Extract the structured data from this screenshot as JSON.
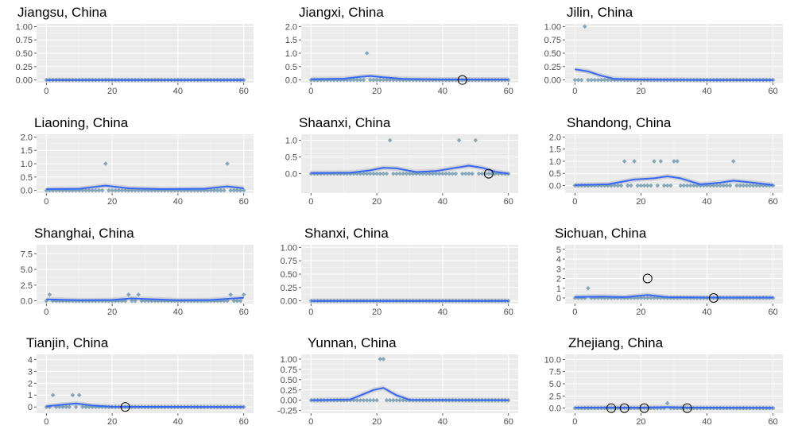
{
  "colors": {
    "panel_bg": "#ebebeb",
    "grid_major": "#ffffff",
    "grid_minor": "#f5f5f5",
    "trend_line": "#3366ff",
    "ribbon": "#bebebe",
    "points": "#5f8ea5",
    "outlier_ring": "#000000",
    "tick_label": "#4d4d4d"
  },
  "chart_data": [
    {
      "type": "scatter",
      "title": "Jiangsu, China",
      "xlim": [
        0,
        60
      ],
      "ylim": [
        0,
        1
      ],
      "xticks": [
        0,
        20,
        40,
        60
      ],
      "yticks": [
        "0.00",
        "0.25",
        "0.50",
        "0.75",
        "1.00"
      ],
      "points": [],
      "outliers": [],
      "trend": [
        [
          0,
          0
        ],
        [
          60,
          0
        ]
      ]
    },
    {
      "type": "scatter",
      "title": "Jiangxi, China",
      "xlim": [
        0,
        60
      ],
      "ylim": [
        0,
        2
      ],
      "xticks": [
        0,
        20,
        40,
        60
      ],
      "yticks": [
        "0.0",
        "0.5",
        "1.0",
        "1.5",
        "2.0"
      ],
      "points": [
        [
          17,
          1
        ]
      ],
      "outliers": [
        [
          46,
          0
        ]
      ],
      "trend": [
        [
          0,
          0.03
        ],
        [
          10,
          0.05
        ],
        [
          15,
          0.12
        ],
        [
          18,
          0.15
        ],
        [
          22,
          0.1
        ],
        [
          28,
          0.04
        ],
        [
          40,
          0.02
        ],
        [
          60,
          0.02
        ]
      ]
    },
    {
      "type": "scatter",
      "title": "Jilin, China",
      "xlim": [
        0,
        60
      ],
      "ylim": [
        0,
        1
      ],
      "xticks": [
        0,
        20,
        40,
        60
      ],
      "yticks": [
        "0.00",
        "0.25",
        "0.50",
        "0.75",
        "1.00"
      ],
      "points": [
        [
          3,
          1
        ]
      ],
      "outliers": [],
      "trend": [
        [
          0,
          0.2
        ],
        [
          4,
          0.16
        ],
        [
          8,
          0.08
        ],
        [
          12,
          0.02
        ],
        [
          20,
          0.01
        ],
        [
          40,
          0.0
        ],
        [
          60,
          0.0
        ]
      ]
    },
    {
      "type": "scatter",
      "title": "Liaoning, China",
      "xlim": [
        0,
        60
      ],
      "ylim": [
        0,
        2
      ],
      "xticks": [
        0,
        20,
        40,
        60
      ],
      "yticks": [
        "0.0",
        "0.5",
        "1.0",
        "1.5",
        "2.0"
      ],
      "points": [
        [
          18,
          1
        ],
        [
          55,
          1
        ]
      ],
      "outliers": [],
      "trend": [
        [
          0,
          0.05
        ],
        [
          10,
          0.06
        ],
        [
          18,
          0.18
        ],
        [
          25,
          0.08
        ],
        [
          35,
          0.05
        ],
        [
          48,
          0.06
        ],
        [
          55,
          0.15
        ],
        [
          60,
          0.08
        ]
      ]
    },
    {
      "type": "scatter",
      "title": "Shaanxi, China",
      "xlim": [
        0,
        60
      ],
      "ylim": [
        -0.5,
        1.1
      ],
      "xticks": [
        0,
        20,
        40,
        60
      ],
      "yticks": [
        "0.0",
        "0.5",
        "1.0"
      ],
      "points": [
        [
          24,
          1
        ],
        [
          45,
          1
        ],
        [
          50,
          1
        ]
      ],
      "outliers": [
        [
          54,
          0
        ]
      ],
      "trend": [
        [
          0,
          0.02
        ],
        [
          12,
          0.03
        ],
        [
          18,
          0.1
        ],
        [
          22,
          0.18
        ],
        [
          26,
          0.16
        ],
        [
          32,
          0.05
        ],
        [
          38,
          0.08
        ],
        [
          44,
          0.18
        ],
        [
          48,
          0.24
        ],
        [
          52,
          0.18
        ],
        [
          56,
          0.06
        ],
        [
          60,
          0.0
        ]
      ]
    },
    {
      "type": "scatter",
      "title": "Shandong, China",
      "xlim": [
        0,
        60
      ],
      "ylim": [
        -0.2,
        2
      ],
      "xticks": [
        0,
        20,
        40,
        60
      ],
      "yticks": [
        "0.0",
        "0.5",
        "1.0",
        "1.5",
        "2.0"
      ],
      "points": [
        [
          15,
          1
        ],
        [
          18,
          1
        ],
        [
          24,
          1
        ],
        [
          26,
          1
        ],
        [
          30,
          1
        ],
        [
          31,
          1
        ],
        [
          48,
          1
        ]
      ],
      "outliers": [],
      "trend": [
        [
          0,
          0.02
        ],
        [
          10,
          0.05
        ],
        [
          18,
          0.25
        ],
        [
          24,
          0.3
        ],
        [
          28,
          0.38
        ],
        [
          32,
          0.3
        ],
        [
          38,
          0.05
        ],
        [
          44,
          0.12
        ],
        [
          48,
          0.2
        ],
        [
          54,
          0.12
        ],
        [
          60,
          0.02
        ]
      ]
    },
    {
      "type": "scatter",
      "title": "Shanghai, China",
      "xlim": [
        0,
        60
      ],
      "ylim": [
        0,
        8.5
      ],
      "xticks": [
        0,
        20,
        40,
        60
      ],
      "yticks": [
        "0.0",
        "2.5",
        "5.0",
        "7.5"
      ],
      "points": [
        [
          1,
          1
        ],
        [
          25,
          1
        ],
        [
          28,
          1
        ],
        [
          56,
          1
        ],
        [
          60,
          1
        ]
      ],
      "outliers": [],
      "trend": [
        [
          0,
          0.25
        ],
        [
          10,
          0.1
        ],
        [
          20,
          0.15
        ],
        [
          26,
          0.4
        ],
        [
          30,
          0.3
        ],
        [
          40,
          0.1
        ],
        [
          50,
          0.15
        ],
        [
          57,
          0.4
        ],
        [
          60,
          0.5
        ]
      ]
    },
    {
      "type": "scatter",
      "title": "Shanxi, China",
      "xlim": [
        0,
        60
      ],
      "ylim": [
        0,
        1
      ],
      "xticks": [
        0,
        20,
        40,
        60
      ],
      "yticks": [
        "0.00",
        "0.25",
        "0.50",
        "0.75",
        "1.00"
      ],
      "points": [],
      "outliers": [],
      "trend": [
        [
          0,
          0
        ],
        [
          60,
          0
        ]
      ]
    },
    {
      "type": "scatter",
      "title": "Sichuan, China",
      "xlim": [
        0,
        60
      ],
      "ylim": [
        -0.3,
        5.2
      ],
      "xticks": [
        0,
        20,
        40,
        60
      ],
      "yticks": [
        "0",
        "1",
        "2",
        "3",
        "4",
        "5"
      ],
      "points": [
        [
          4,
          1
        ]
      ],
      "outliers": [
        [
          22,
          2
        ],
        [
          42,
          0
        ]
      ],
      "trend": [
        [
          0,
          0.1
        ],
        [
          8,
          0.15
        ],
        [
          15,
          0.08
        ],
        [
          22,
          0.3
        ],
        [
          28,
          0.08
        ],
        [
          40,
          0.05
        ],
        [
          60,
          0.05
        ]
      ]
    },
    {
      "type": "scatter",
      "title": "Tianjin, China",
      "xlim": [
        0,
        60
      ],
      "ylim": [
        -0.3,
        4.2
      ],
      "xticks": [
        0,
        20,
        40,
        60
      ],
      "yticks": [
        "0",
        "1",
        "2",
        "3",
        "4"
      ],
      "points": [
        [
          2,
          1
        ],
        [
          8,
          1
        ],
        [
          10,
          1
        ]
      ],
      "outliers": [
        [
          24,
          0
        ]
      ],
      "trend": [
        [
          0,
          0.05
        ],
        [
          5,
          0.2
        ],
        [
          9,
          0.3
        ],
        [
          14,
          0.12
        ],
        [
          20,
          0.02
        ],
        [
          60,
          0.0
        ]
      ]
    },
    {
      "type": "scatter",
      "title": "Yunnan, China",
      "xlim": [
        0,
        60
      ],
      "ylim": [
        -0.25,
        1.05
      ],
      "xticks": [
        0,
        20,
        40,
        60
      ],
      "yticks": [
        "-0.25",
        "0.00",
        "0.25",
        "0.50",
        "0.75",
        "1.00"
      ],
      "points": [
        [
          21,
          1
        ],
        [
          22,
          1
        ]
      ],
      "outliers": [],
      "trend": [
        [
          0,
          0.0
        ],
        [
          12,
          0.02
        ],
        [
          16,
          0.15
        ],
        [
          19,
          0.25
        ],
        [
          22,
          0.3
        ],
        [
          26,
          0.12
        ],
        [
          30,
          0.01
        ],
        [
          60,
          0.0
        ]
      ]
    },
    {
      "type": "scatter",
      "title": "Zhejiang, China",
      "xlim": [
        0,
        60
      ],
      "ylim": [
        -0.5,
        10.5
      ],
      "xticks": [
        0,
        20,
        40,
        60
      ],
      "yticks": [
        "0.0",
        "2.5",
        "5.0",
        "7.5",
        "10.0"
      ],
      "points": [
        [
          28,
          1
        ]
      ],
      "outliers": [
        [
          11,
          0
        ],
        [
          15,
          0
        ],
        [
          21,
          0
        ],
        [
          34,
          0
        ]
      ],
      "trend": [
        [
          0,
          0.1
        ],
        [
          10,
          0.12
        ],
        [
          20,
          0.1
        ],
        [
          28,
          0.2
        ],
        [
          35,
          0.1
        ],
        [
          60,
          0.05
        ]
      ]
    }
  ]
}
